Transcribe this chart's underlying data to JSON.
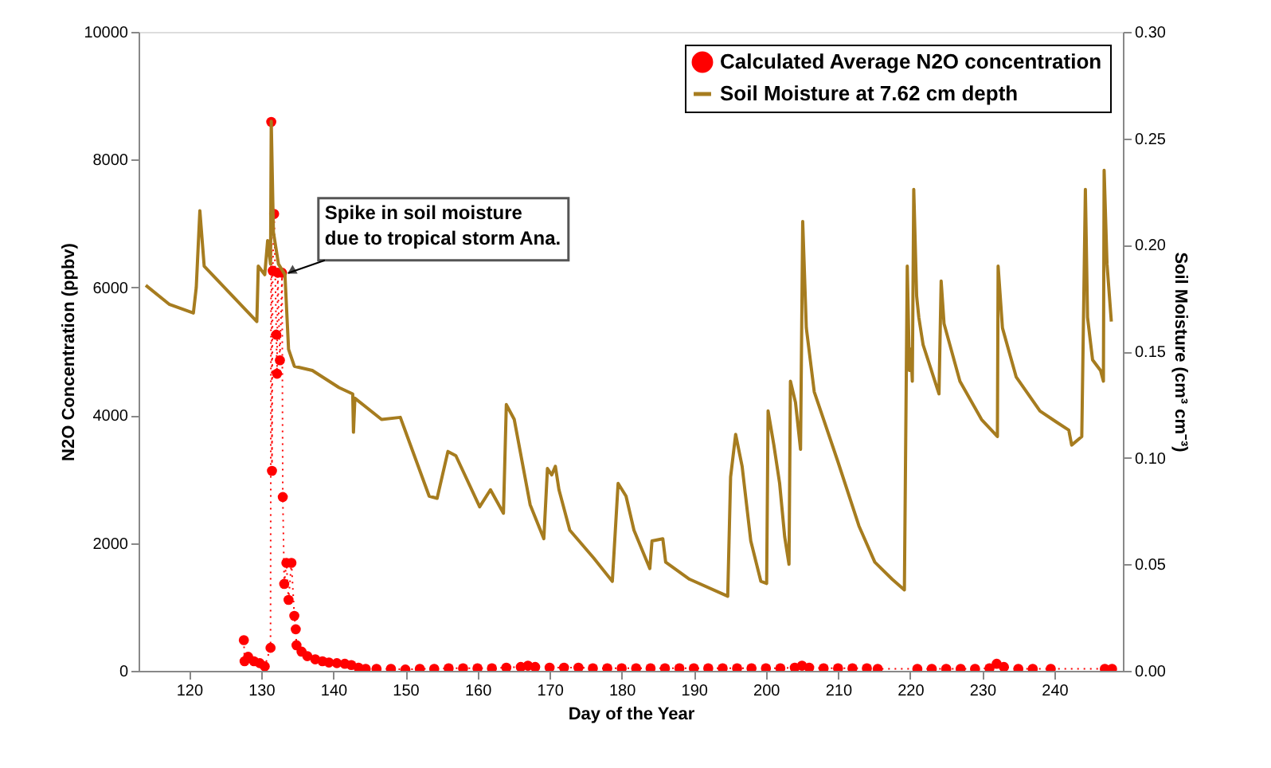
{
  "chart_data": {
    "type": "line",
    "xlabel": "Day of the Year",
    "ylabel": "N2O Concentration (ppbv)",
    "y2label": "Soil Moisture (cm³ cm⁻³)",
    "xlim": [
      113,
      249.5
    ],
    "ylim": [
      0,
      10000
    ],
    "y2lim": [
      0,
      0.3
    ],
    "xticks": [
      120,
      130,
      140,
      150,
      160,
      170,
      180,
      190,
      200,
      210,
      220,
      230,
      240
    ],
    "yticks": [
      0,
      2000,
      4000,
      6000,
      8000,
      10000
    ],
    "y2ticks": [
      {
        "value": 0,
        "label": "0.00"
      },
      {
        "value": 0.05,
        "label": "0.05"
      },
      {
        "value": 0.1,
        "label": "0.10"
      },
      {
        "value": 0.15,
        "label": "0.15"
      },
      {
        "value": 0.2,
        "label": "0.20"
      },
      {
        "value": 0.25,
        "label": "0.25"
      },
      {
        "value": 0.3,
        "label": "0.30"
      }
    ],
    "grid": false,
    "legend": "top right",
    "annotations": [
      {
        "text": "Spike in soil moisture\ndue to tropical storm Ana.",
        "x": 133.3,
        "y": 6200
      }
    ],
    "series": [
      {
        "name": "Calculated Average N2O concentration",
        "color": "#ff0000",
        "marker": "circle",
        "line_style": "dotted",
        "x": [
          127.6,
          127.7,
          128.2,
          129.0,
          129.8,
          130.5,
          131.3,
          131.4,
          131.5,
          131.6,
          131.8,
          132.1,
          132.2,
          132.3,
          132.6,
          132.9,
          133.0,
          133.2,
          133.5,
          133.8,
          134.2,
          134.6,
          134.8,
          134.9,
          135.6,
          136.4,
          137.5,
          138.5,
          139.4,
          140.5,
          141.6,
          142.5,
          143.5,
          144.5,
          146,
          148,
          150,
          152,
          154,
          156,
          158,
          160,
          162,
          164,
          166,
          167,
          168,
          170,
          172,
          174,
          176,
          178,
          180,
          182,
          184,
          186,
          188,
          190,
          192,
          194,
          196,
          198,
          200,
          202,
          204,
          205,
          206,
          208,
          210,
          212,
          214,
          215.5,
          221,
          223,
          225,
          227,
          229,
          231,
          232,
          233,
          235,
          237,
          239.5,
          247,
          248
        ],
        "values": [
          480,
          150,
          220,
          150,
          120,
          70,
          360,
          8590,
          3130,
          6260,
          7150,
          5260,
          4650,
          6230,
          4860,
          6230,
          2720,
          1360,
          1690,
          1110,
          1690,
          860,
          650,
          400,
          300,
          230,
          180,
          150,
          130,
          120,
          110,
          90,
          50,
          30,
          30,
          30,
          20,
          30,
          30,
          40,
          40,
          40,
          40,
          50,
          60,
          80,
          60,
          50,
          50,
          50,
          40,
          40,
          40,
          40,
          40,
          40,
          40,
          40,
          40,
          40,
          40,
          40,
          40,
          40,
          50,
          80,
          50,
          40,
          40,
          40,
          40,
          30,
          30,
          30,
          30,
          30,
          30,
          40,
          110,
          60,
          30,
          30,
          30,
          30,
          30
        ]
      },
      {
        "name": "Soil Moisture at 7.62 cm depth",
        "axis": "y2",
        "color": "#a67c1f",
        "marker": "none",
        "line_style": "solid",
        "x": [
          114.0,
          117.3,
          120.6,
          121.0,
          121.5,
          122.1,
          129.4,
          129.6,
          130.5,
          130.9,
          131.3,
          131.4,
          131.7,
          132.4,
          133.3,
          133.8,
          134.6,
          137.1,
          140.8,
          142.7,
          142.8,
          143.0,
          146.7,
          149.3,
          153.3,
          154.4,
          155.9,
          157.0,
          160.3,
          161.8,
          163.6,
          164.0,
          165.1,
          167.3,
          169.2,
          169.7,
          170.3,
          170.8,
          171.3,
          172.8,
          176.1,
          178.7,
          179.5,
          180.6,
          181.7,
          183.9,
          184.2,
          185.7,
          186.1,
          189.4,
          194.7,
          195.1,
          195.8,
          196.7,
          197.9,
          199.3,
          200.1,
          200.3,
          201.1,
          201.9,
          202.6,
          203.2,
          203.4,
          204.1,
          204.8,
          205.1,
          205.6,
          206.7,
          210.0,
          212.9,
          215.1,
          217.5,
          219.2,
          219.6,
          219.9,
          220.1,
          220.3,
          220.5,
          220.9,
          221.2,
          221.8,
          224.0,
          224.3,
          224.7,
          226.9,
          229.9,
          232.1,
          232.2,
          232.8,
          234.7,
          238.0,
          240.2,
          242.0,
          242.4,
          243.8,
          244.3,
          244.6,
          245.3,
          246.4,
          246.8,
          246.9,
          247.3,
          247.9
        ],
        "values": [
          0.181,
          0.172,
          0.168,
          0.18,
          0.216,
          0.19,
          0.164,
          0.19,
          0.186,
          0.202,
          0.191,
          0.258,
          0.206,
          0.191,
          0.186,
          0.151,
          0.143,
          0.141,
          0.133,
          0.13,
          0.112,
          0.128,
          0.118,
          0.119,
          0.082,
          0.081,
          0.103,
          0.101,
          0.077,
          0.085,
          0.074,
          0.125,
          0.118,
          0.078,
          0.062,
          0.095,
          0.092,
          0.096,
          0.085,
          0.066,
          0.053,
          0.042,
          0.088,
          0.082,
          0.066,
          0.048,
          0.061,
          0.062,
          0.051,
          0.043,
          0.035,
          0.091,
          0.111,
          0.096,
          0.061,
          0.042,
          0.041,
          0.122,
          0.106,
          0.088,
          0.063,
          0.05,
          0.136,
          0.126,
          0.104,
          0.211,
          0.161,
          0.131,
          0.098,
          0.068,
          0.051,
          0.043,
          0.038,
          0.19,
          0.141,
          0.151,
          0.136,
          0.226,
          0.176,
          0.166,
          0.153,
          0.13,
          0.183,
          0.163,
          0.136,
          0.118,
          0.11,
          0.19,
          0.161,
          0.138,
          0.122,
          0.117,
          0.113,
          0.106,
          0.11,
          0.226,
          0.166,
          0.146,
          0.141,
          0.136,
          0.235,
          0.191,
          0.164
        ]
      }
    ]
  }
}
